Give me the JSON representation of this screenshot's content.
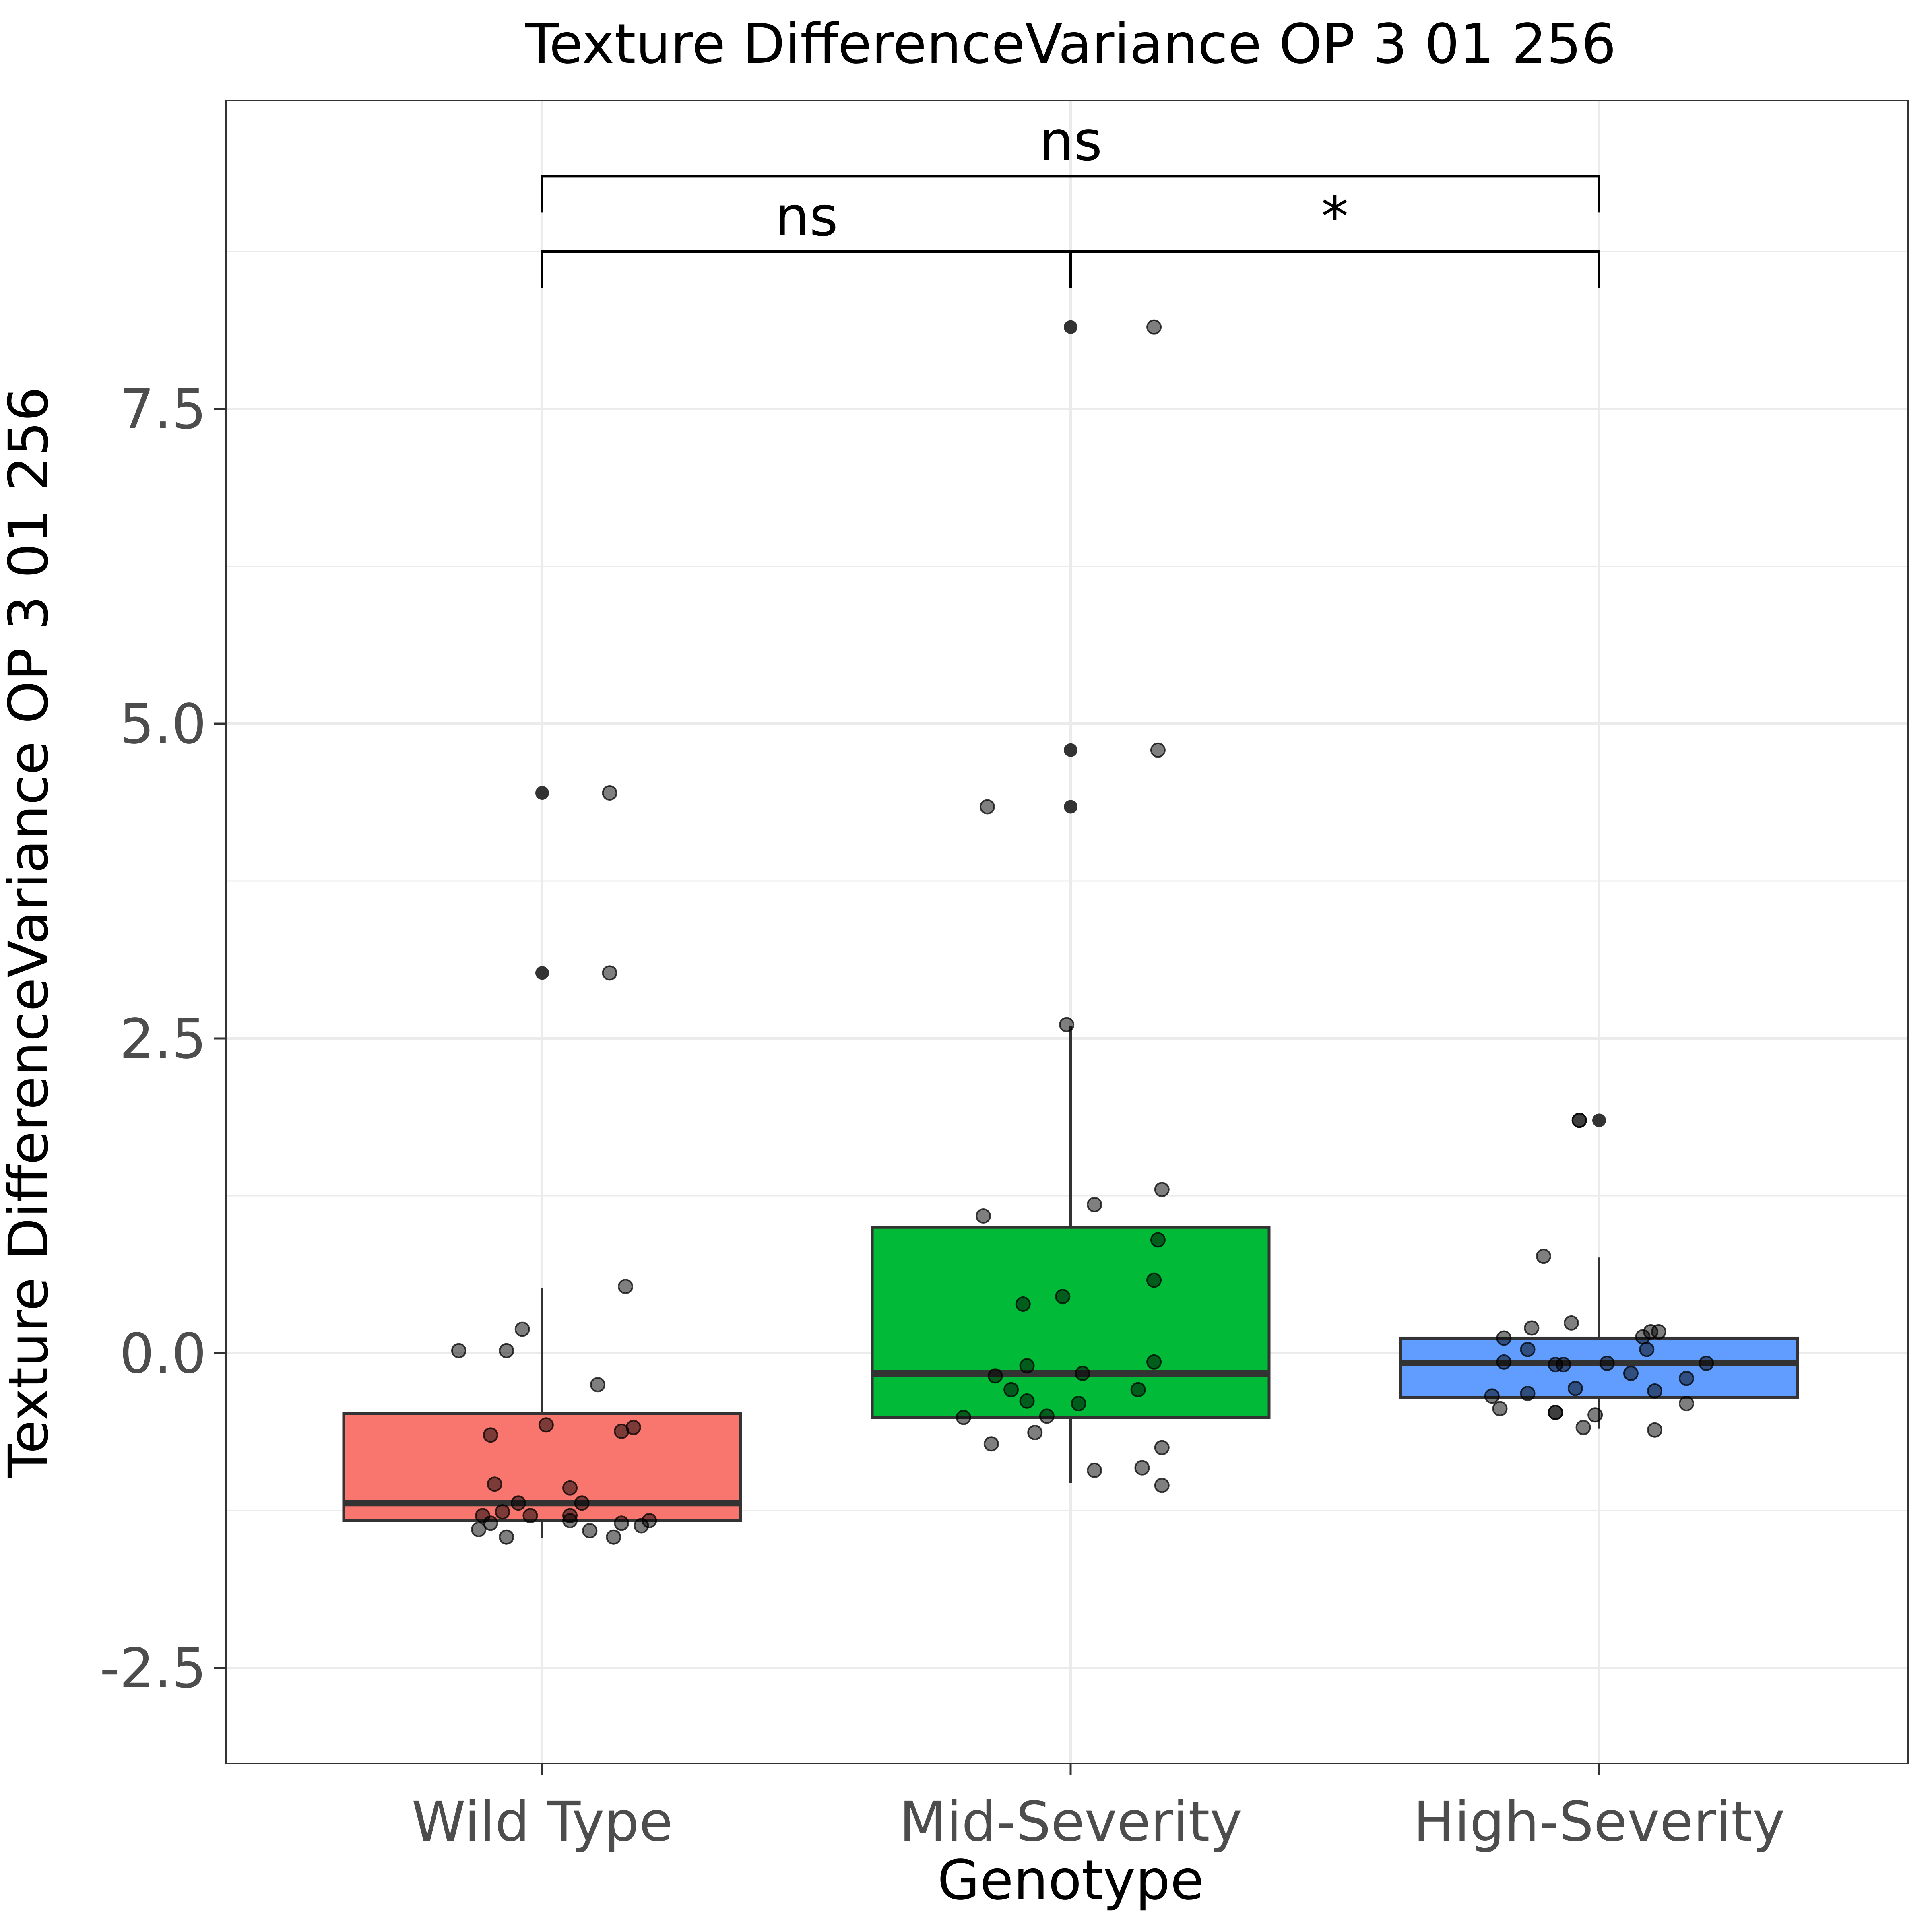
{
  "chart_data": {
    "type": "boxplot",
    "title": "Texture DifferenceVariance OP 3 01 256",
    "xlabel": "Genotype",
    "ylabel": "Texture DifferenceVariance OP 3 01 256",
    "ylim": [
      -3.25,
      9.9
    ],
    "yticks": [
      -2.5,
      0.0,
      2.5,
      5.0,
      7.5
    ],
    "ytick_labels": [
      "-2.5",
      "0.0",
      "2.5",
      "5.0",
      "7.5"
    ],
    "grid": true,
    "legend": "none",
    "categories": [
      "Wild Type",
      "Mid-Severity",
      "High-Severity"
    ],
    "groups": [
      {
        "name": "Wild Type",
        "color": "#F8766D",
        "box": {
          "q1": -1.33,
          "median": -1.19,
          "q3": -0.48,
          "whisker_low": -1.47,
          "whisker_high": 0.52
        },
        "outliers": [
          4.45,
          3.02
        ],
        "points": [
          {
            "x": -0.21,
            "y": 0.02
          },
          {
            "x": -0.09,
            "y": 0.02
          },
          {
            "x": -0.05,
            "y": 0.19
          },
          {
            "x": 0.21,
            "y": 0.53
          },
          {
            "x": 0.14,
            "y": -0.25
          },
          {
            "x": 0.01,
            "y": -0.57
          },
          {
            "x": -0.13,
            "y": -0.65
          },
          {
            "x": 0.2,
            "y": -0.62
          },
          {
            "x": 0.23,
            "y": -0.59
          },
          {
            "x": -0.12,
            "y": -1.04
          },
          {
            "x": 0.07,
            "y": -1.07
          },
          {
            "x": -0.06,
            "y": -1.19
          },
          {
            "x": 0.1,
            "y": -1.19
          },
          {
            "x": -0.1,
            "y": -1.26
          },
          {
            "x": -0.03,
            "y": -1.29
          },
          {
            "x": 0.07,
            "y": -1.29
          },
          {
            "x": -0.15,
            "y": -1.29
          },
          {
            "x": 0.07,
            "y": -1.33
          },
          {
            "x": -0.13,
            "y": -1.35
          },
          {
            "x": 0.2,
            "y": -1.35
          },
          {
            "x": 0.27,
            "y": -1.33
          },
          {
            "x": 0.25,
            "y": -1.37
          },
          {
            "x": -0.16,
            "y": -1.4
          },
          {
            "x": 0.12,
            "y": -1.41
          },
          {
            "x": -0.09,
            "y": -1.46
          },
          {
            "x": 0.18,
            "y": -1.46
          },
          {
            "x": 0.17,
            "y": 4.45
          },
          {
            "x": 0.17,
            "y": 3.02
          }
        ]
      },
      {
        "name": "Mid-Severity",
        "color": "#00BA38",
        "box": {
          "q1": -0.51,
          "median": -0.16,
          "q3": 1.0,
          "whisker_low": -1.03,
          "whisker_high": 2.6
        },
        "outliers": [
          8.15,
          4.79,
          4.34
        ],
        "points": [
          {
            "x": -0.21,
            "y": 4.34
          },
          {
            "x": 0.22,
            "y": 4.79
          },
          {
            "x": 0.21,
            "y": 8.15
          },
          {
            "x": -0.01,
            "y": 2.61
          },
          {
            "x": 0.23,
            "y": 1.3
          },
          {
            "x": -0.22,
            "y": 1.09
          },
          {
            "x": 0.06,
            "y": 1.18
          },
          {
            "x": 0.22,
            "y": 0.9
          },
          {
            "x": 0.21,
            "y": 0.58
          },
          {
            "x": -0.02,
            "y": 0.45
          },
          {
            "x": -0.12,
            "y": 0.39
          },
          {
            "x": 0.21,
            "y": -0.07
          },
          {
            "x": -0.11,
            "y": -0.1
          },
          {
            "x": -0.19,
            "y": -0.18
          },
          {
            "x": 0.03,
            "y": -0.16
          },
          {
            "x": -0.15,
            "y": -0.29
          },
          {
            "x": 0.17,
            "y": -0.29
          },
          {
            "x": -0.11,
            "y": -0.38
          },
          {
            "x": 0.02,
            "y": -0.4
          },
          {
            "x": -0.06,
            "y": -0.5
          },
          {
            "x": -0.27,
            "y": -0.51
          },
          {
            "x": -0.09,
            "y": -0.63
          },
          {
            "x": -0.2,
            "y": -0.72
          },
          {
            "x": 0.23,
            "y": -0.75
          },
          {
            "x": 0.06,
            "y": -0.93
          },
          {
            "x": 0.18,
            "y": -0.91
          },
          {
            "x": 0.23,
            "y": -1.05
          }
        ]
      },
      {
        "name": "High-Severity",
        "color": "#619CFF",
        "box": {
          "q1": -0.35,
          "median": -0.08,
          "q3": 0.12,
          "whisker_low": -0.6,
          "whisker_high": 0.76
        },
        "outliers": [
          1.85
        ],
        "points": [
          {
            "x": -0.05,
            "y": 1.85
          },
          {
            "x": -0.14,
            "y": 0.77
          },
          {
            "x": -0.24,
            "y": 0.12
          },
          {
            "x": -0.17,
            "y": 0.2
          },
          {
            "x": -0.07,
            "y": 0.24
          },
          {
            "x": 0.13,
            "y": 0.17
          },
          {
            "x": 0.15,
            "y": 0.17
          },
          {
            "x": 0.11,
            "y": 0.13
          },
          {
            "x": -0.18,
            "y": 0.03
          },
          {
            "x": 0.12,
            "y": 0.03
          },
          {
            "x": -0.24,
            "y": -0.07
          },
          {
            "x": -0.09,
            "y": -0.09
          },
          {
            "x": -0.11,
            "y": -0.09
          },
          {
            "x": 0.02,
            "y": -0.08
          },
          {
            "x": 0.27,
            "y": -0.08
          },
          {
            "x": 0.08,
            "y": -0.16
          },
          {
            "x": 0.22,
            "y": -0.2
          },
          {
            "x": -0.27,
            "y": -0.34
          },
          {
            "x": -0.18,
            "y": -0.32
          },
          {
            "x": -0.06,
            "y": -0.28
          },
          {
            "x": 0.14,
            "y": -0.3
          },
          {
            "x": 0.22,
            "y": -0.4
          },
          {
            "x": -0.25,
            "y": -0.44
          },
          {
            "x": -0.11,
            "y": -0.47
          },
          {
            "x": -0.11,
            "y": -0.47
          },
          {
            "x": -0.01,
            "y": -0.49
          },
          {
            "x": -0.04,
            "y": -0.59
          },
          {
            "x": 0.14,
            "y": -0.61
          },
          {
            "x": -0.05,
            "y": 1.85
          }
        ]
      }
    ],
    "comparisons": [
      {
        "from": 0,
        "to": 1,
        "label": "ns",
        "y": 8.75
      },
      {
        "from": 1,
        "to": 2,
        "label": "*",
        "y": 8.75
      },
      {
        "from": 0,
        "to": 2,
        "label": "ns",
        "y": 9.35
      }
    ]
  }
}
